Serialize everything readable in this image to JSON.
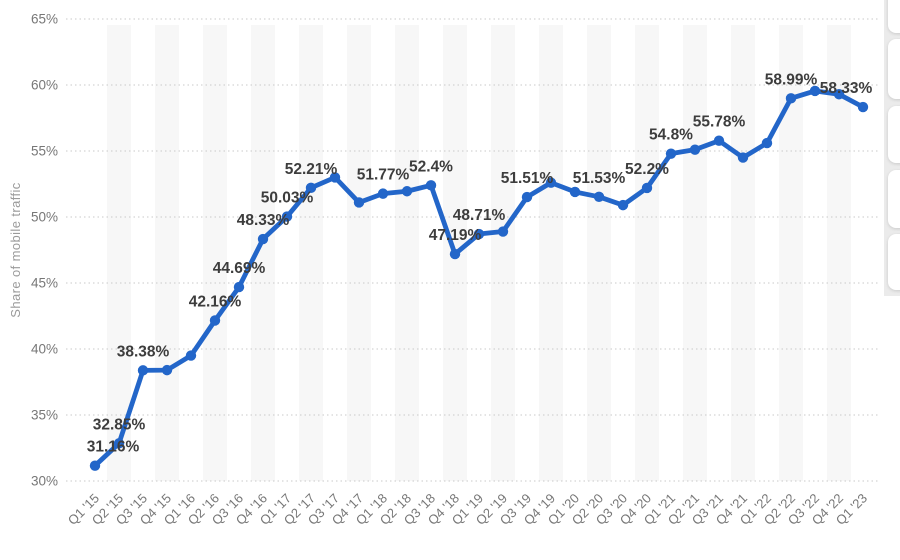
{
  "chart_data": {
    "type": "line",
    "title": "",
    "xlabel": "",
    "ylabel": "Share of mobile traffic",
    "ylim": [
      30,
      65
    ],
    "y_tick_labels": [
      "65%",
      "60%",
      "55%",
      "50%",
      "45%",
      "40%",
      "35%",
      "30%"
    ],
    "grid": "horizontal dotted gridlines only",
    "plot_background": "alternating white / light-gray vertical quarter bands",
    "legend_position": "none",
    "marker": "circle",
    "series": [
      {
        "name": "Share of mobile traffic",
        "categories": [
          "Q1 '15",
          "Q2 '15",
          "Q3 '15",
          "Q4 '15",
          "Q1 '16",
          "Q2 '16",
          "Q3 '16",
          "Q4 '16",
          "Q1 '17",
          "Q2 '17",
          "Q3 '17",
          "Q4 '17",
          "Q1 '18",
          "Q2 '18",
          "Q3 '18",
          "Q4 '18",
          "Q1 '19",
          "Q2 '19",
          "Q3 '19",
          "Q4 '19",
          "Q1 '20",
          "Q2 '20",
          "Q3 '20",
          "Q4 '20",
          "Q1 '21",
          "Q2 '21",
          "Q3 '21",
          "Q4 '21",
          "Q1 '22",
          "Q2 '22",
          "Q3 '22",
          "Q4 '22",
          "Q1 '23"
        ],
        "values": [
          31.16,
          32.85,
          38.38,
          38.4,
          39.5,
          42.16,
          44.69,
          48.33,
          50.03,
          52.21,
          53.0,
          51.1,
          51.77,
          51.95,
          52.4,
          47.19,
          48.71,
          48.9,
          51.51,
          52.6,
          51.9,
          51.53,
          50.9,
          52.2,
          54.8,
          55.1,
          55.78,
          54.5,
          55.6,
          58.99,
          59.55,
          59.3,
          58.33
        ],
        "point_labels": [
          "31.16%",
          "32.85%",
          "38.38%",
          null,
          null,
          "42.16%",
          "44.69%",
          "48.33%",
          "50.03%",
          "52.21%",
          null,
          null,
          "51.77%",
          null,
          "52.4%",
          "47.19%",
          "48.71%",
          null,
          "51.51%",
          null,
          null,
          "51.53%",
          null,
          "52.2%",
          "54.8%",
          null,
          "55.78%",
          null,
          null,
          "58.99%",
          null,
          null,
          "58.33%"
        ]
      }
    ]
  },
  "colors": {
    "line": "#2366c9",
    "marker": "#2366c9",
    "point_label": "#3d3d3d",
    "tick_label": "#777777",
    "axis_title": "#9b9b9b",
    "gridline": "#c9c9c9",
    "stripe": "#f7f7f7",
    "page_background": "#ffffff",
    "right_edge_background": "#ebebeb",
    "right_edge_card": "#ffffff"
  },
  "right_edge_panel": {
    "card_count": 5
  }
}
